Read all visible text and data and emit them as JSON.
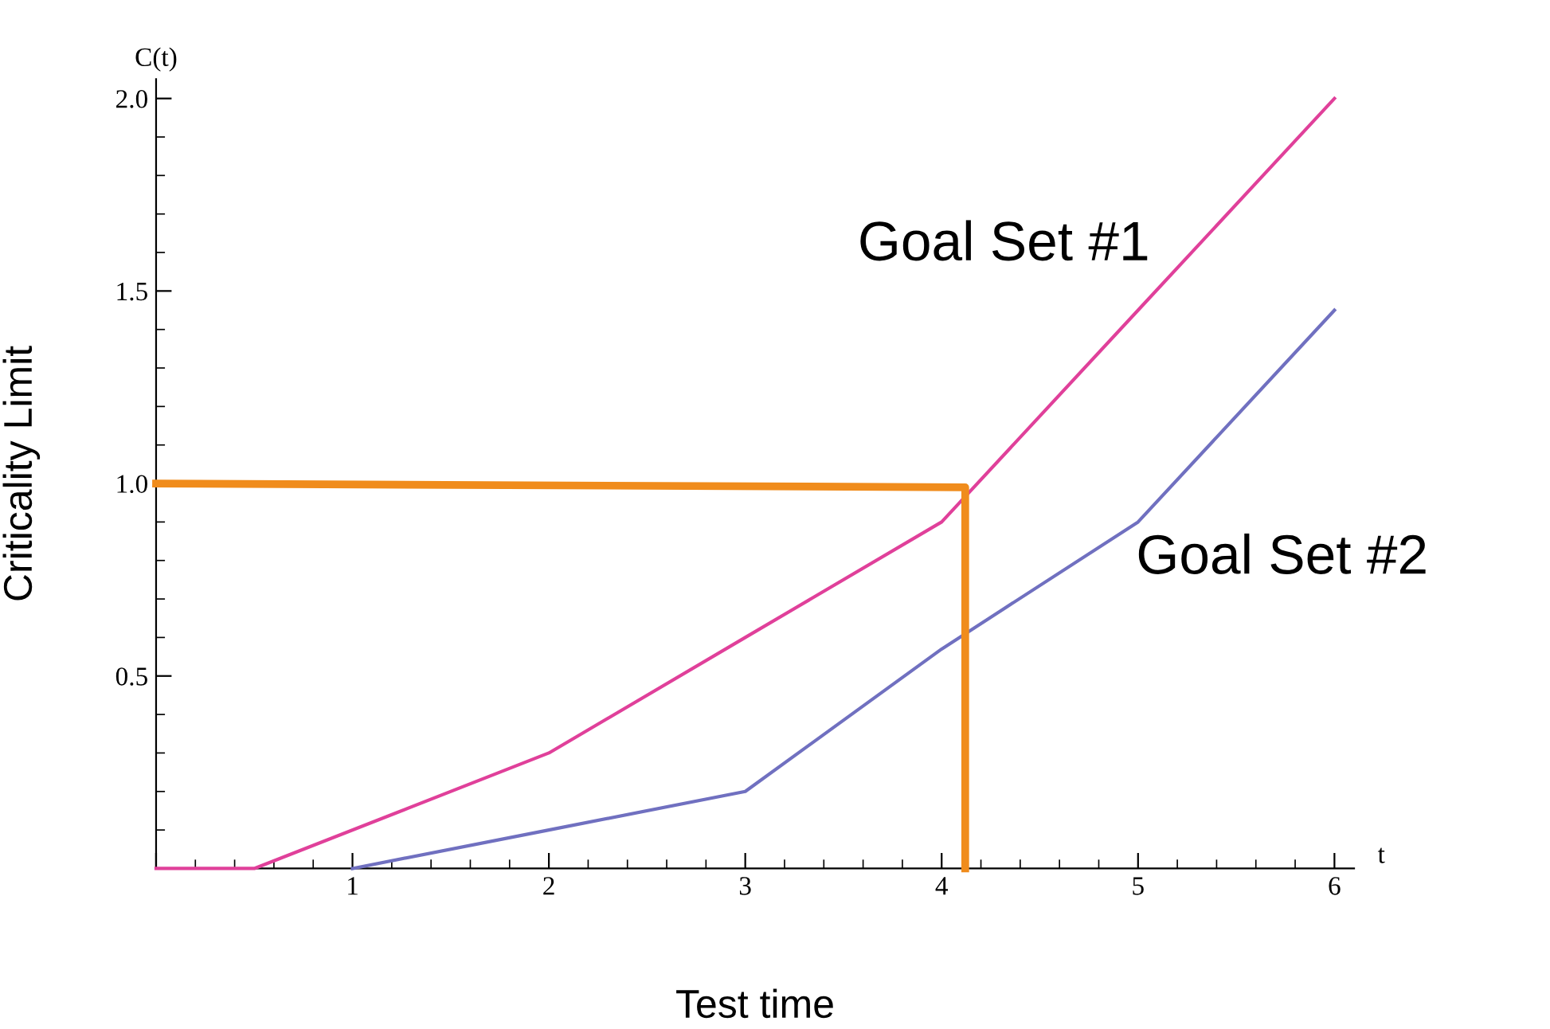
{
  "chart_data": {
    "type": "line",
    "xlabel": "Test time",
    "ylabel": "Criticality Limit",
    "annotations": [
      "C(t)",
      "t"
    ],
    "xlim": [
      0,
      6.1
    ],
    "ylim": [
      0,
      2.05
    ],
    "xticks": [
      {
        "value": 0,
        "label": null
      },
      1,
      2,
      3,
      4,
      5,
      6
    ],
    "yticks": [
      {
        "value": 0,
        "label": null
      },
      0.5,
      {
        "value": 1,
        "label": "1.0"
      },
      1.5,
      {
        "value": 2,
        "label": "2.0"
      }
    ],
    "grid": false,
    "legend": false,
    "marker": "none",
    "line_style": "solid",
    "series": [
      {
        "name": "Goal Set #1",
        "color": "#e0409a",
        "x": [
          0,
          0.5,
          2,
          3,
          4,
          5,
          6
        ],
        "values": [
          0,
          0,
          0.3,
          0.6,
          0.9,
          1.45,
          2.0
        ]
      },
      {
        "name": "Goal Set #2",
        "color": "#7070c0",
        "x": [
          1,
          2,
          3,
          4,
          5,
          6
        ],
        "values": [
          0,
          0.1,
          0.2,
          0.57,
          0.9,
          1.45
        ]
      },
      {
        "color": "#f08c1c",
        "x": [
          0,
          4.12,
          4.12
        ],
        "values": [
          1.0,
          0.99,
          0
        ]
      }
    ]
  }
}
